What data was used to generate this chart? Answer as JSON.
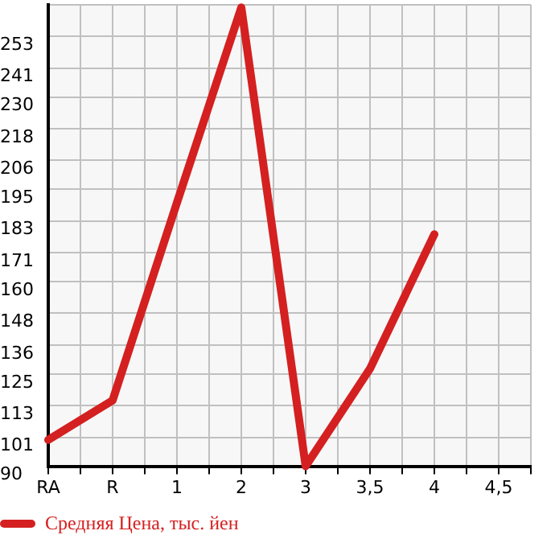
{
  "chart_data": {
    "type": "line",
    "categories": [
      "RA",
      "R",
      "1",
      "2",
      "3",
      "3,5",
      "4",
      "4,5"
    ],
    "series": [
      {
        "name": "Средняя Цена, тыс. йен",
        "color": "#d42020",
        "values": [
          100,
          115,
          190,
          264,
          90,
          127,
          178,
          null
        ]
      }
    ],
    "ylim": [
      90,
      265
    ],
    "yticks": [
      90,
      101,
      113,
      125,
      136,
      148,
      160,
      171,
      183,
      195,
      206,
      218,
      230,
      241,
      253,
      {
        "value": 265,
        "label": null
      }
    ],
    "grid": true,
    "legend": "bottom left",
    "marker": "none",
    "line_style": "solid"
  }
}
